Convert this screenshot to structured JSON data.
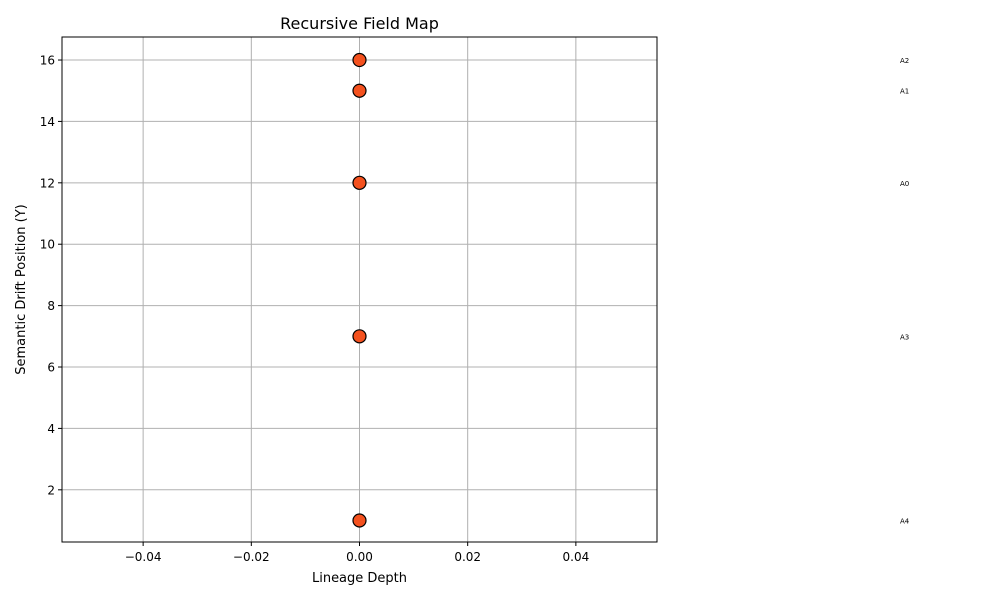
{
  "chart_data": {
    "type": "scatter",
    "title": "Recursive Field Map",
    "xlabel": "Lineage Depth",
    "ylabel": "Semantic Drift Position (Y)",
    "xlim": [
      -0.055,
      0.055
    ],
    "ylim": [
      0.3,
      16.75
    ],
    "x_ticks": [
      -0.04,
      -0.02,
      0.0,
      0.02,
      0.04
    ],
    "x_tick_labels": [
      "−0.04",
      "−0.02",
      "0.00",
      "0.02",
      "0.04"
    ],
    "y_ticks": [
      2,
      4,
      6,
      8,
      10,
      12,
      14,
      16
    ],
    "y_tick_labels": [
      "2",
      "4",
      "6",
      "8",
      "10",
      "12",
      "14",
      "16"
    ],
    "grid": true,
    "points": [
      {
        "label": "A0",
        "x": 0,
        "y": 12
      },
      {
        "label": "A1",
        "x": 0,
        "y": 15
      },
      {
        "label": "A2",
        "x": 0,
        "y": 16
      },
      {
        "label": "A3",
        "x": 0,
        "y": 7
      },
      {
        "label": "A4",
        "x": 0,
        "y": 1
      }
    ],
    "marker_fill": "#f4511e",
    "marker_edge": "#000000",
    "grid_color": "#b0b0b0"
  }
}
